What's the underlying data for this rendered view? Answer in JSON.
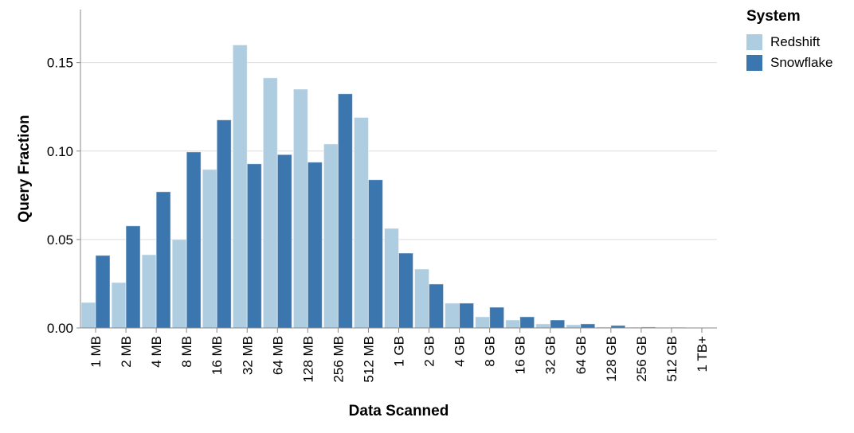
{
  "chart_data": {
    "type": "bar",
    "title": "",
    "xlabel": "Data Scanned",
    "ylabel": "Query Fraction",
    "ylim": [
      0,
      0.18
    ],
    "yticks": [
      "0.00",
      "0.05",
      "0.10",
      "0.15"
    ],
    "grid": true,
    "legend": {
      "title": "System",
      "placement": "top-right"
    },
    "categories": [
      "1 MB",
      "2 MB",
      "4 MB",
      "8 MB",
      "16 MB",
      "32 MB",
      "64 MB",
      "128 MB",
      "256 MB",
      "512 MB",
      "1 GB",
      "2 GB",
      "4 GB",
      "8 GB",
      "16 GB",
      "32 GB",
      "64 GB",
      "128 GB",
      "256 GB",
      "512 GB",
      "1 TB+"
    ],
    "series": [
      {
        "name": "Redshift",
        "color": "#aecde1",
        "values": [
          0.0144,
          0.0257,
          0.0414,
          0.05,
          0.0896,
          0.16,
          0.1414,
          0.135,
          0.104,
          0.119,
          0.0563,
          0.0333,
          0.014,
          0.0063,
          0.0045,
          0.0023,
          0.0018,
          0.0005,
          0.0004,
          0.0003,
          0.0002
        ]
      },
      {
        "name": "Snowflake",
        "color": "#3c76af",
        "values": [
          0.041,
          0.0577,
          0.077,
          0.0995,
          0.1176,
          0.0928,
          0.098,
          0.0937,
          0.1324,
          0.0838,
          0.0423,
          0.0248,
          0.014,
          0.0117,
          0.0063,
          0.0045,
          0.0023,
          0.0014,
          0.0005,
          0.0003,
          0.0002
        ]
      }
    ]
  }
}
